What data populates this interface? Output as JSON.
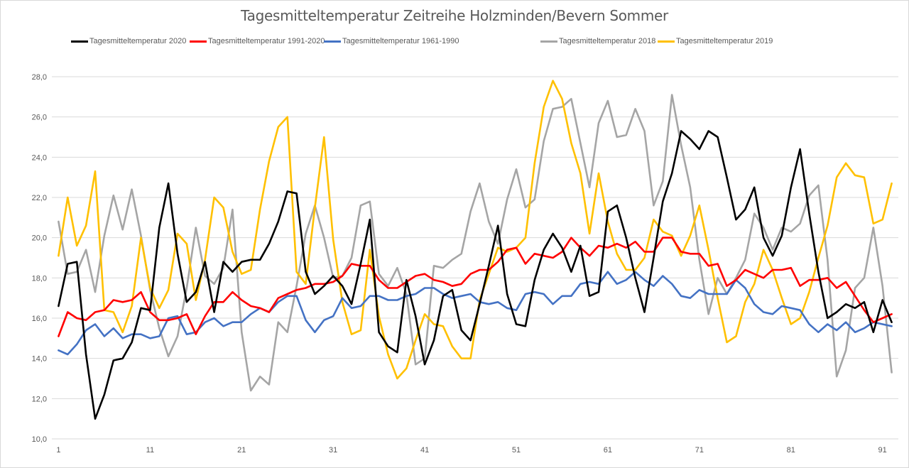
{
  "chart_data": {
    "type": "line",
    "title": "Tagesmitteltemperatur Zeitreihe Holzminden/Bevern Sommer",
    "xlabel": "",
    "ylabel": "",
    "ylim": [
      10,
      28
    ],
    "y_ticks": [
      "10,0",
      "12,0",
      "14,0",
      "16,0",
      "18,0",
      "20,0",
      "22,0",
      "24,0",
      "26,0",
      "28,0"
    ],
    "y_tick_values": [
      10,
      12,
      14,
      16,
      18,
      20,
      22,
      24,
      26,
      28
    ],
    "x_tick_labels": [
      "1",
      "11",
      "21",
      "31",
      "41",
      "51",
      "61",
      "71",
      "81",
      "91"
    ],
    "x_tick_values": [
      1,
      11,
      21,
      31,
      41,
      51,
      61,
      71,
      81,
      91
    ],
    "x_count": 92,
    "grid": "horizontal",
    "legend_position": "top",
    "series": [
      {
        "name": "Tagesmitteltemperatur 2020",
        "color": "#000000",
        "values": [
          16.6,
          18.7,
          18.8,
          14.2,
          11.0,
          12.2,
          13.9,
          14.0,
          14.8,
          16.5,
          16.4,
          20.5,
          22.7,
          19.2,
          16.8,
          17.3,
          18.8,
          16.3,
          18.8,
          18.3,
          18.8,
          18.9,
          18.9,
          19.7,
          20.8,
          22.3,
          22.2,
          18.3,
          17.2,
          17.6,
          18.1,
          17.6,
          16.7,
          18.7,
          20.9,
          15.3,
          14.6,
          14.3,
          17.9,
          16.1,
          13.7,
          14.9,
          17.1,
          17.4,
          15.4,
          14.9,
          16.7,
          18.6,
          20.6,
          17.2,
          15.7,
          15.6,
          17.9,
          19.4,
          20.2,
          19.5,
          18.3,
          19.6,
          17.1,
          17.3,
          21.3,
          21.6,
          20.0,
          18.0,
          16.3,
          19.0,
          21.8,
          23.2,
          25.3,
          24.9,
          24.4,
          25.3,
          25.0,
          23.0,
          20.9,
          21.4,
          22.5,
          20.0,
          19.1,
          20.1,
          22.5,
          24.4,
          21.2,
          18.3,
          16.0,
          16.3,
          16.7,
          16.5,
          16.8,
          15.3,
          16.9,
          15.8
        ]
      },
      {
        "name": "Tagesmitteltemperatur 1991-2020",
        "color": "#ff0000",
        "values": [
          15.1,
          16.3,
          16.0,
          15.9,
          16.3,
          16.4,
          16.9,
          16.8,
          16.9,
          17.3,
          16.3,
          15.9,
          15.9,
          16.0,
          16.2,
          15.2,
          16.1,
          16.8,
          16.8,
          17.3,
          16.9,
          16.6,
          16.5,
          16.3,
          17.0,
          17.2,
          17.4,
          17.5,
          17.7,
          17.7,
          17.8,
          18.1,
          18.7,
          18.6,
          18.6,
          17.9,
          17.5,
          17.5,
          17.8,
          18.1,
          18.2,
          17.9,
          17.8,
          17.6,
          17.7,
          18.2,
          18.4,
          18.4,
          18.8,
          19.4,
          19.5,
          18.7,
          19.2,
          19.1,
          19.0,
          19.3,
          20.0,
          19.5,
          19.1,
          19.6,
          19.5,
          19.7,
          19.5,
          19.8,
          19.3,
          19.3,
          20.0,
          20.0,
          19.3,
          19.2,
          19.2,
          18.6,
          18.7,
          17.6,
          17.9,
          18.4,
          18.2,
          18.0,
          18.4,
          18.4,
          18.5,
          17.6,
          17.9,
          17.9,
          18.0,
          17.5,
          17.8,
          17.1,
          16.4,
          15.8,
          16.0,
          16.2
        ]
      },
      {
        "name": "Tagesmitteltemperatur 1961-1990",
        "color": "#4472c4",
        "values": [
          14.4,
          14.2,
          14.7,
          15.4,
          15.7,
          15.1,
          15.5,
          15.0,
          15.2,
          15.2,
          15.0,
          15.1,
          16.0,
          16.1,
          15.2,
          15.3,
          15.8,
          16.0,
          15.6,
          15.8,
          15.8,
          16.2,
          16.5,
          16.3,
          16.8,
          17.1,
          17.1,
          15.9,
          15.3,
          15.9,
          16.1,
          17.0,
          16.5,
          16.6,
          17.1,
          17.1,
          16.9,
          16.9,
          17.1,
          17.2,
          17.5,
          17.5,
          17.2,
          17.0,
          17.1,
          17.2,
          16.8,
          16.7,
          16.8,
          16.5,
          16.4,
          17.2,
          17.3,
          17.2,
          16.7,
          17.1,
          17.1,
          17.7,
          17.8,
          17.7,
          18.3,
          17.7,
          17.9,
          18.3,
          17.9,
          17.6,
          18.1,
          17.7,
          17.1,
          17.0,
          17.4,
          17.2,
          17.2,
          17.2,
          17.9,
          17.5,
          16.7,
          16.3,
          16.2,
          16.6,
          16.5,
          16.4,
          15.7,
          15.3,
          15.7,
          15.4,
          15.8,
          15.3,
          15.5,
          15.8,
          15.7,
          15.6
        ]
      },
      {
        "name": "Tagesmitteltemperatur 2018",
        "color": "#a5a5a5",
        "values": [
          20.8,
          18.2,
          18.3,
          19.4,
          17.3,
          20.1,
          22.1,
          20.4,
          22.4,
          20.1,
          17.4,
          15.5,
          14.1,
          15.1,
          17.5,
          20.5,
          18.1,
          17.7,
          18.5,
          21.4,
          15.3,
          12.4,
          13.1,
          12.7,
          15.8,
          15.3,
          17.6,
          20.2,
          21.6,
          20.0,
          18.0,
          18.1,
          19.0,
          21.6,
          21.8,
          18.2,
          17.6,
          18.5,
          17.2,
          13.7,
          14.0,
          18.6,
          18.5,
          18.9,
          19.2,
          21.3,
          22.7,
          20.8,
          19.7,
          21.9,
          23.4,
          21.5,
          21.9,
          24.8,
          26.4,
          26.5,
          26.9,
          24.7,
          22.5,
          25.7,
          26.8,
          25.0,
          25.1,
          26.4,
          25.3,
          21.6,
          22.8,
          27.1,
          24.6,
          22.5,
          18.9,
          16.2,
          18.0,
          17.2,
          18.0,
          18.9,
          21.2,
          20.5,
          19.4,
          20.5,
          20.3,
          20.7,
          22.1,
          22.6,
          18.9,
          13.1,
          14.4,
          17.5,
          18.0,
          20.5,
          17.6,
          13.3
        ]
      },
      {
        "name": "Tagesmitteltemperatur 2019",
        "color": "#ffc000",
        "values": [
          19.1,
          22.0,
          19.6,
          20.6,
          23.3,
          16.4,
          16.3,
          15.3,
          16.6,
          20.0,
          17.5,
          16.5,
          17.4,
          20.2,
          19.7,
          16.9,
          18.9,
          22.0,
          21.5,
          19.3,
          18.2,
          18.4,
          21.4,
          23.8,
          25.5,
          26.0,
          18.3,
          17.7,
          21.5,
          25.0,
          19.9,
          16.8,
          15.2,
          15.4,
          19.4,
          16.1,
          14.2,
          13.0,
          13.5,
          14.9,
          16.2,
          15.7,
          15.6,
          14.6,
          14.0,
          14.0,
          16.9,
          18.2,
          19.5,
          19.3,
          19.5,
          20.0,
          23.7,
          26.5,
          27.8,
          26.9,
          24.7,
          23.2,
          20.2,
          23.2,
          20.8,
          19.2,
          18.4,
          18.4,
          19.0,
          20.9,
          20.3,
          20.1,
          19.1,
          20.1,
          21.6,
          19.4,
          17.0,
          14.8,
          15.1,
          16.8,
          17.7,
          19.4,
          18.4,
          17.0,
          15.7,
          16.0,
          17.3,
          19.0,
          20.6,
          23.0,
          23.7,
          23.1,
          23.0,
          20.7,
          20.9,
          22.7
        ]
      }
    ]
  }
}
